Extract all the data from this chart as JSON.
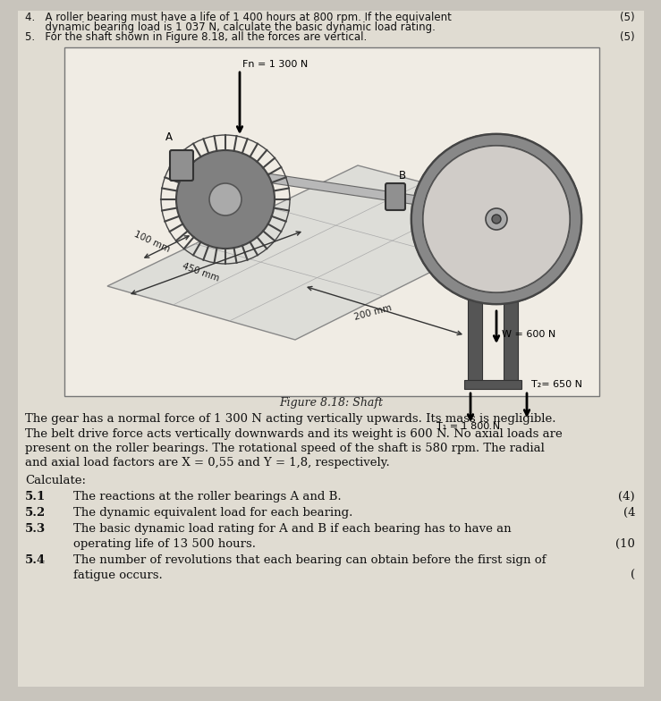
{
  "bg_color": "#c8c4bc",
  "page_bg": "#e0dcd2",
  "fig_bg": "#f0ece4",
  "header_line4": "4.   A roller bearing must have a life of 1 400 hours at 800 rpm. If the equivalent",
  "header_line4b": "      dynamic bearing load is 1 037 N, calculate the basic dynamic load rating.",
  "header_line5": "5.   For the shaft shown in Figure 8.18, all the forces are vertical.",
  "header_mark4": "(5)",
  "header_mark5": "(5)",
  "figure_caption": "Figure 8.18: Shaft",
  "para1": "The gear has a normal force of 1 300 N acting vertically upwards. Its mass is negligible.",
  "para2": "The belt drive force acts vertically downwards and its weight is 600 N. No axial loads are",
  "para3": "present on the roller bearings. The rotational speed of the shaft is 580 rpm. The radial",
  "para4": "and axial load factors are X = 0,55 and Y = 1,8, respectively.",
  "calculate": "Calculate:",
  "q51": "5.1",
  "q51text": "The reactions at the roller bearings A and B.",
  "q52": "5.2",
  "q52text": "The dynamic equivalent load for each bearing.",
  "q52mark": "(4)",
  "q53": "5.3",
  "q53text": "The basic dynamic load rating for A and B if each bearing has to have an",
  "q53text2": "operating life of 13 500 hours.",
  "q53mark": "(4",
  "q54": "5.4",
  "q54text": "The number of revolutions that each bearing can obtain before the first sign of",
  "q54text2": "fatigue occurs.",
  "q54mark": "(10",
  "q54mark2": "(",
  "Fn_label": "Fn = 1 300 N",
  "T1_label": "T₁ = 1 800 N",
  "T2_label": "T₂= 650 N",
  "W_label": "W = 600 N",
  "dim_100": "100 mm",
  "dim_450": "450 mm",
  "dim_200": "200 mm",
  "label_A": "A",
  "label_B": "B"
}
